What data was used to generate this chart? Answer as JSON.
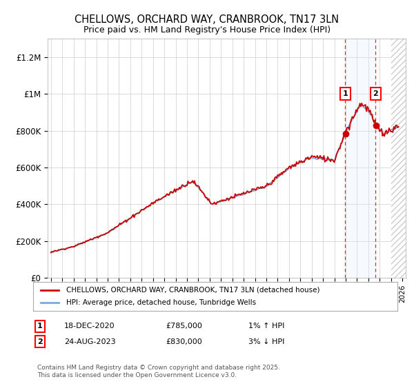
{
  "title": "CHELLOWS, ORCHARD WAY, CRANBROOK, TN17 3LN",
  "subtitle": "Price paid vs. HM Land Registry's House Price Index (HPI)",
  "ylabel_ticks": [
    "£0",
    "£200K",
    "£400K",
    "£600K",
    "£800K",
    "£1M",
    "£1.2M"
  ],
  "ytick_values": [
    0,
    200000,
    400000,
    600000,
    800000,
    1000000,
    1200000
  ],
  "ylim": [
    0,
    1300000
  ],
  "xlim_start": 1994.7,
  "xlim_end": 2026.3,
  "hpi_color": "#7aaadd",
  "price_color": "#cc0000",
  "sale1_date": 2020.96,
  "sale1_price": 785000,
  "sale1_label": "1",
  "sale2_date": 2023.65,
  "sale2_price": 830000,
  "sale2_label": "2",
  "legend_line1": "CHELLOWS, ORCHARD WAY, CRANBROOK, TN17 3LN (detached house)",
  "legend_line2": "HPI: Average price, detached house, Tunbridge Wells",
  "footer": "Contains HM Land Registry data © Crown copyright and database right 2025.\nThis data is licensed under the Open Government Licence v3.0.",
  "background_color": "#ffffff",
  "grid_color": "#cccccc",
  "shade_color": "#ddeeff",
  "hatch_color": "#cccccc",
  "future_start": 2025.0
}
